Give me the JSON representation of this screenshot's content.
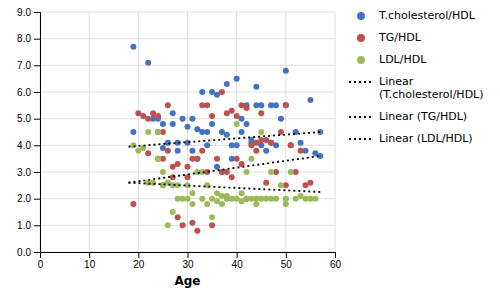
{
  "chart_data": {
    "type": "scatter",
    "xlabel": "Age",
    "xlim": [
      0,
      60
    ],
    "ylim": [
      0.0,
      9.0
    ],
    "xticks": [
      0,
      10,
      20,
      30,
      40,
      50,
      60
    ],
    "yticks": [
      {
        "value": 0,
        "label": "0.0"
      },
      {
        "value": 1,
        "label": "1.0"
      },
      {
        "value": 2,
        "label": "2.0"
      },
      {
        "value": 3,
        "label": "3.0"
      },
      {
        "value": 4,
        "label": "4.0"
      },
      {
        "value": 5,
        "label": "5.0"
      },
      {
        "value": 6,
        "label": "6.0"
      },
      {
        "value": 7,
        "label": "7.0"
      },
      {
        "value": 8,
        "label": "8.0"
      },
      {
        "value": 9,
        "label": "9.0"
      }
    ],
    "grid": true,
    "legend": "right",
    "series": [
      {
        "name": "T.cholesterol/HDL",
        "type": "scatter",
        "marker": "circle",
        "color": "#4472C4",
        "x": [
          19,
          19,
          22,
          23,
          24,
          24,
          25,
          25,
          26,
          27,
          27,
          28,
          28,
          29,
          30,
          30,
          31,
          31,
          32,
          32,
          33,
          33,
          34,
          34,
          35,
          35,
          36,
          36,
          37,
          37,
          38,
          38,
          39,
          39,
          40,
          40,
          41,
          41,
          42,
          42,
          43,
          43,
          44,
          44,
          45,
          45,
          46,
          47,
          47,
          48,
          48,
          49,
          50,
          50,
          51,
          52,
          53,
          54,
          55,
          56,
          57,
          57
        ],
        "values": [
          7.7,
          4.5,
          7.1,
          5.0,
          4.5,
          5.0,
          4.8,
          3.9,
          4.1,
          5.2,
          4.8,
          4.1,
          3.8,
          5.0,
          4.7,
          4.1,
          5.0,
          3.8,
          4.6,
          3.5,
          6.0,
          4.5,
          4.5,
          4.0,
          6.0,
          4.8,
          5.9,
          3.2,
          4.5,
          3.0,
          6.3,
          4.4,
          4.0,
          3.5,
          6.5,
          4.0,
          5.0,
          4.5,
          5.5,
          4.8,
          4.2,
          4.1,
          6.2,
          5.5,
          5.5,
          4.0,
          3.8,
          5.5,
          4.1,
          5.5,
          4.0,
          5.0,
          6.8,
          5.5,
          4.0,
          4.5,
          4.1,
          3.8,
          5.7,
          3.7,
          4.5,
          3.6
        ]
      },
      {
        "name": "TG/HDL",
        "type": "scatter",
        "marker": "circle",
        "color": "#C0504D",
        "x": [
          19,
          20,
          21,
          22,
          22,
          23,
          24,
          24,
          25,
          25,
          25,
          26,
          26,
          27,
          27,
          28,
          28,
          29,
          30,
          30,
          31,
          31,
          32,
          32,
          33,
          33,
          34,
          34,
          35,
          35,
          36,
          37,
          37,
          38,
          38,
          39,
          39,
          40,
          40,
          41,
          41,
          42,
          42,
          43,
          44,
          44,
          45,
          45,
          46,
          46,
          47,
          48,
          49,
          50,
          50,
          51,
          52,
          53,
          54,
          55
        ],
        "values": [
          1.8,
          5.2,
          5.1,
          5.0,
          3.7,
          5.2,
          5.1,
          3.5,
          4.5,
          3.5,
          2.5,
          5.5,
          3.8,
          3.2,
          2.8,
          3.3,
          1.3,
          1.0,
          3.2,
          2.8,
          3.5,
          1.1,
          3.5,
          0.8,
          5.5,
          3.8,
          5.5,
          3.0,
          5.1,
          1.0,
          3.5,
          6.0,
          3.0,
          5.2,
          3.0,
          5.3,
          2.8,
          5.1,
          3.5,
          5.5,
          3.3,
          5.4,
          2.0,
          4.0,
          4.1,
          3.8,
          5.2,
          4.2,
          4.2,
          2.6,
          4.1,
          3.0,
          4.5,
          5.5,
          2.5,
          4.0,
          3.0,
          3.8,
          2.5,
          2.6
        ]
      },
      {
        "name": "LDL/HDL",
        "type": "scatter",
        "marker": "circle",
        "color": "#9BBB59",
        "x": [
          19,
          20,
          21,
          22,
          22,
          23,
          24,
          24,
          25,
          25,
          26,
          26,
          27,
          27,
          28,
          28,
          29,
          30,
          30,
          31,
          31,
          32,
          33,
          33,
          34,
          34,
          35,
          35,
          36,
          36,
          37,
          37,
          38,
          38,
          39,
          40,
          40,
          41,
          41,
          42,
          42,
          43,
          43,
          44,
          44,
          45,
          45,
          46,
          47,
          47,
          48,
          49,
          50,
          50,
          51,
          52,
          53,
          54,
          55,
          56
        ],
        "values": [
          4.0,
          3.8,
          3.9,
          4.5,
          2.6,
          2.6,
          4.5,
          3.5,
          3.0,
          2.5,
          2.6,
          1.0,
          2.5,
          1.5,
          2.5,
          2.0,
          2.0,
          2.5,
          2.0,
          2.2,
          1.8,
          3.0,
          3.0,
          2.0,
          2.5,
          1.8,
          2.0,
          1.3,
          2.2,
          1.9,
          2.1,
          1.8,
          2.1,
          2.0,
          2.0,
          4.8,
          2.0,
          2.2,
          1.9,
          3.0,
          2.0,
          3.5,
          2.0,
          2.0,
          1.8,
          4.5,
          2.0,
          2.0,
          3.0,
          2.0,
          2.0,
          2.5,
          2.0,
          1.8,
          3.0,
          2.0,
          2.1,
          2.0,
          2.0,
          2.0
        ]
      },
      {
        "name": "Linear\n(T.cholesterol/HDL)",
        "type": "line",
        "line_style": "dotted",
        "color": "black",
        "x": [
          18,
          57
        ],
        "values": [
          3.95,
          4.5
        ]
      },
      {
        "name": "Linear (TG/HDL)",
        "type": "line",
        "line_style": "dotted",
        "color": "black",
        "x": [
          18,
          57
        ],
        "values": [
          2.6,
          3.6
        ]
      },
      {
        "name": "Linear (LDL/HDL)",
        "type": "line",
        "line_style": "dotted",
        "color": "black",
        "x": [
          18,
          57
        ],
        "values": [
          2.6,
          2.25
        ]
      }
    ]
  }
}
